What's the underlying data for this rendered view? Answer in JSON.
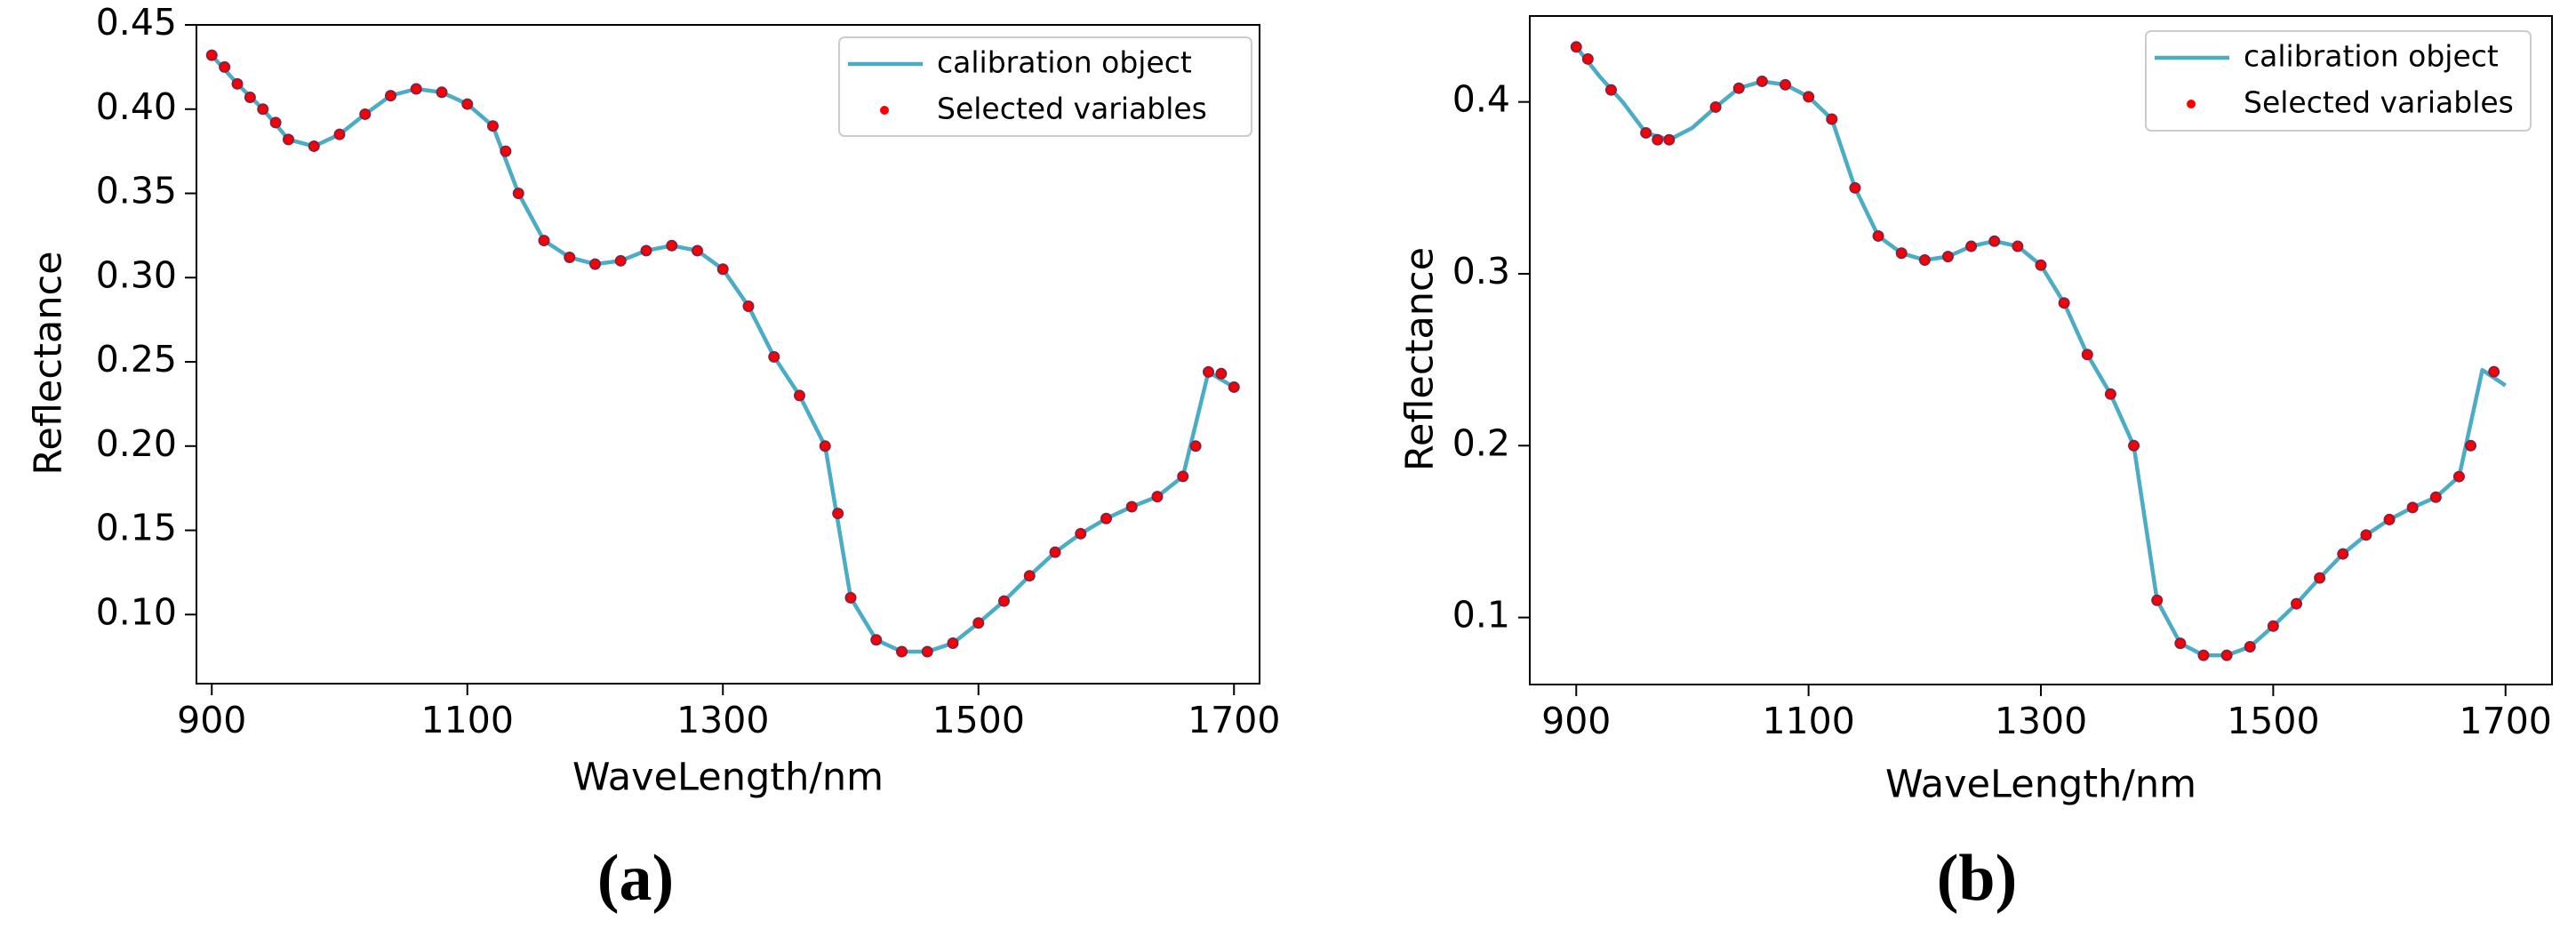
{
  "chart_data": [
    {
      "type": "line",
      "label": "(a)",
      "xlabel": "WaveLength/nm",
      "ylabel": "Reflectance",
      "x": [
        900,
        920,
        940,
        960,
        980,
        1000,
        1020,
        1040,
        1060,
        1080,
        1100,
        1120,
        1140,
        1160,
        1180,
        1200,
        1220,
        1240,
        1260,
        1280,
        1300,
        1320,
        1340,
        1360,
        1380,
        1400,
        1420,
        1440,
        1460,
        1480,
        1500,
        1520,
        1540,
        1560,
        1580,
        1600,
        1620,
        1640,
        1660,
        1680,
        1700
      ],
      "series": [
        {
          "name": "calibration object",
          "color": "#4bacc6",
          "values": [
            0.432,
            0.415,
            0.4,
            0.382,
            0.378,
            0.385,
            0.397,
            0.408,
            0.412,
            0.41,
            0.403,
            0.39,
            0.35,
            0.322,
            0.312,
            0.308,
            0.31,
            0.316,
            0.319,
            0.316,
            0.305,
            0.283,
            0.253,
            0.23,
            0.2,
            0.11,
            0.085,
            0.078,
            0.078,
            0.083,
            0.095,
            0.108,
            0.123,
            0.137,
            0.148,
            0.157,
            0.164,
            0.17,
            0.182,
            0.244,
            0.235
          ]
        },
        {
          "name": "Selected variables",
          "color": "red",
          "type": "scatter",
          "x": [
            900,
            910,
            920,
            930,
            940,
            950,
            960,
            980,
            1000,
            1020,
            1040,
            1060,
            1080,
            1100,
            1120,
            1130,
            1140,
            1160,
            1180,
            1200,
            1220,
            1240,
            1260,
            1280,
            1300,
            1320,
            1340,
            1360,
            1380,
            1390,
            1400,
            1420,
            1440,
            1460,
            1480,
            1500,
            1520,
            1540,
            1560,
            1580,
            1600,
            1620,
            1640,
            1660,
            1670,
            1680,
            1690,
            1700
          ],
          "values": [
            0.432,
            0.425,
            0.415,
            0.407,
            0.4,
            0.392,
            0.382,
            0.378,
            0.385,
            0.397,
            0.408,
            0.412,
            0.41,
            0.403,
            0.39,
            0.375,
            0.35,
            0.322,
            0.312,
            0.308,
            0.31,
            0.316,
            0.319,
            0.316,
            0.305,
            0.283,
            0.253,
            0.23,
            0.2,
            0.16,
            0.11,
            0.085,
            0.078,
            0.078,
            0.083,
            0.095,
            0.108,
            0.123,
            0.137,
            0.148,
            0.157,
            0.164,
            0.17,
            0.182,
            0.2,
            0.244,
            0.243,
            0.235
          ]
        }
      ],
      "xlim": [
        888,
        1720
      ],
      "xticks": [
        900,
        1100,
        1300,
        1500,
        1700
      ],
      "ylim": [
        0.059,
        0.45
      ],
      "yticks": [
        {
          "value": 0.1,
          "label": "0.10"
        },
        0.15,
        {
          "value": 0.2,
          "label": "0.20"
        },
        0.25,
        {
          "value": 0.3,
          "label": "0.30"
        },
        0.35,
        {
          "value": 0.4,
          "label": "0.40"
        },
        0.45
      ],
      "legend": "upper right"
    },
    {
      "type": "line",
      "label": "(b)",
      "xlabel": "WaveLength/nm",
      "ylabel": "Reflectance",
      "x": [
        900,
        920,
        940,
        960,
        980,
        1000,
        1020,
        1040,
        1060,
        1080,
        1100,
        1120,
        1140,
        1160,
        1180,
        1200,
        1220,
        1240,
        1260,
        1280,
        1300,
        1320,
        1340,
        1360,
        1380,
        1400,
        1420,
        1440,
        1460,
        1480,
        1500,
        1520,
        1540,
        1560,
        1580,
        1600,
        1620,
        1640,
        1660,
        1680,
        1700
      ],
      "series": [
        {
          "name": "calibration object",
          "color": "#4bacc6",
          "values": [
            0.432,
            0.415,
            0.4,
            0.382,
            0.378,
            0.385,
            0.397,
            0.408,
            0.412,
            0.41,
            0.403,
            0.39,
            0.35,
            0.322,
            0.312,
            0.308,
            0.31,
            0.316,
            0.319,
            0.316,
            0.305,
            0.283,
            0.253,
            0.23,
            0.2,
            0.11,
            0.085,
            0.078,
            0.078,
            0.083,
            0.095,
            0.108,
            0.123,
            0.137,
            0.148,
            0.157,
            0.164,
            0.17,
            0.182,
            0.244,
            0.235
          ]
        },
        {
          "name": "Selected variables",
          "color": "red",
          "type": "scatter",
          "x": [
            900,
            910,
            930,
            960,
            970,
            980,
            1020,
            1040,
            1060,
            1080,
            1100,
            1120,
            1140,
            1160,
            1180,
            1200,
            1220,
            1240,
            1260,
            1280,
            1300,
            1320,
            1340,
            1360,
            1380,
            1400,
            1420,
            1440,
            1460,
            1480,
            1500,
            1520,
            1540,
            1560,
            1580,
            1600,
            1620,
            1640,
            1660,
            1670,
            1690
          ],
          "values": [
            0.432,
            0.425,
            0.407,
            0.382,
            0.378,
            0.378,
            0.397,
            0.408,
            0.412,
            0.41,
            0.403,
            0.39,
            0.35,
            0.322,
            0.312,
            0.308,
            0.31,
            0.316,
            0.319,
            0.316,
            0.305,
            0.283,
            0.253,
            0.23,
            0.2,
            0.11,
            0.085,
            0.078,
            0.078,
            0.083,
            0.095,
            0.108,
            0.123,
            0.137,
            0.148,
            0.157,
            0.164,
            0.17,
            0.182,
            0.2,
            0.243
          ]
        }
      ],
      "xlim": [
        860,
        1740
      ],
      "xticks": [
        900,
        1100,
        1300,
        1500,
        1700
      ],
      "ylim": [
        0.061,
        0.45
      ],
      "yticks": [
        0.1,
        0.2,
        0.3,
        0.4
      ],
      "legend": "upper right"
    }
  ]
}
